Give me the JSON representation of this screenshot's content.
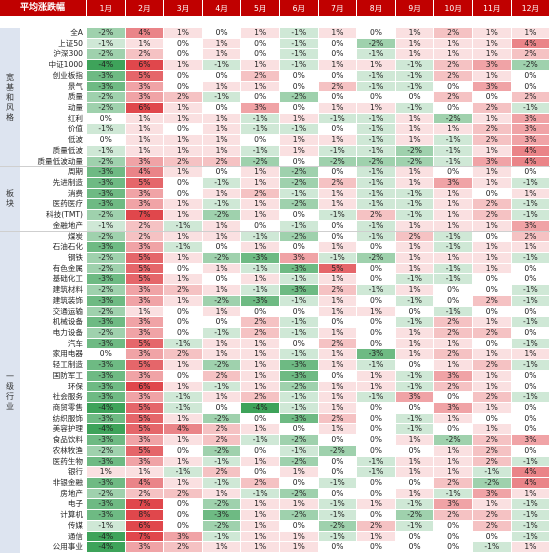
{
  "chart_data": {
    "type": "heatmap",
    "title": "平均涨跌幅",
    "columns": [
      "1月",
      "2月",
      "3月",
      "4月",
      "5月",
      "6月",
      "7月",
      "8月",
      "9月",
      "10月",
      "11月",
      "12月"
    ],
    "colors": {
      "header_bg": "#c00000",
      "positive": "#e0474c",
      "negative": "#3ea35a",
      "group_bg": "#dde4f0"
    },
    "groups": [
      {
        "label": "宽基和风格",
        "rows": [
          {
            "name": "全A",
            "values": [
              -2,
              4,
              1,
              0,
              1,
              -1,
              1,
              0,
              1,
              2,
              1,
              1
            ]
          },
          {
            "name": "上证50",
            "values": [
              -1,
              1,
              0,
              1,
              0,
              -1,
              0,
              -2,
              1,
              1,
              1,
              4
            ]
          },
          {
            "name": "沪深300",
            "values": [
              -2,
              2,
              0,
              1,
              0,
              -1,
              0,
              -1,
              1,
              1,
              1,
              2
            ]
          },
          {
            "name": "中证1000",
            "values": [
              -4,
              6,
              1,
              -1,
              1,
              -1,
              1,
              1,
              -1,
              2,
              3,
              -2
            ]
          },
          {
            "name": "创业板指",
            "values": [
              -3,
              5,
              0,
              0,
              2,
              0,
              0,
              -1,
              -1,
              2,
              1,
              0
            ]
          },
          {
            "name": "景气",
            "values": [
              -3,
              3,
              0,
              1,
              1,
              0,
              2,
              -1,
              -1,
              0,
              3,
              0
            ]
          },
          {
            "name": "质量",
            "values": [
              -2,
              3,
              2,
              -1,
              0,
              -2,
              0,
              0,
              0,
              2,
              0,
              2
            ]
          },
          {
            "name": "动量",
            "values": [
              -2,
              6,
              1,
              0,
              3,
              0,
              1,
              1,
              -1,
              0,
              2,
              -1
            ]
          },
          {
            "name": "红利",
            "values": [
              0,
              1,
              1,
              1,
              -1,
              1,
              -1,
              -1,
              1,
              -2,
              1,
              3
            ]
          },
          {
            "name": "价值",
            "values": [
              -1,
              1,
              0,
              1,
              -1,
              -1,
              0,
              -1,
              1,
              1,
              2,
              3
            ]
          },
          {
            "name": "低波",
            "values": [
              0,
              1,
              1,
              1,
              0,
              1,
              1,
              -1,
              1,
              -1,
              2,
              3
            ]
          },
          {
            "name": "质量低波",
            "values": [
              -1,
              1,
              1,
              1,
              -1,
              1,
              -1,
              -1,
              -2,
              -1,
              1,
              4
            ]
          },
          {
            "name": "质量低波动量",
            "values": [
              -2,
              3,
              2,
              2,
              -2,
              0,
              -2,
              -2,
              -2,
              -1,
              3,
              4
            ]
          }
        ]
      },
      {
        "label": "板块",
        "rows": [
          {
            "name": "周期",
            "values": [
              -3,
              4,
              1,
              0,
              1,
              -2,
              0,
              -1,
              1,
              0,
              1,
              0
            ]
          },
          {
            "name": "先进制造",
            "values": [
              -3,
              5,
              0,
              -1,
              1,
              -2,
              2,
              -1,
              1,
              3,
              1,
              -1
            ]
          },
          {
            "name": "消费",
            "values": [
              -3,
              3,
              0,
              1,
              2,
              -1,
              1,
              -1,
              -1,
              1,
              0,
              1
            ]
          },
          {
            "name": "医药医疗",
            "values": [
              -3,
              3,
              1,
              -1,
              1,
              -2,
              1,
              -1,
              -1,
              1,
              2,
              -1
            ]
          },
          {
            "name": "科技(TMT)",
            "values": [
              -2,
              7,
              1,
              -2,
              1,
              0,
              -1,
              2,
              -1,
              1,
              2,
              -1
            ]
          },
          {
            "name": "金融地产",
            "values": [
              -1,
              2,
              -1,
              1,
              0,
              -1,
              0,
              -1,
              1,
              1,
              1,
              3
            ]
          }
        ]
      },
      {
        "label": "一级行业",
        "rows": [
          {
            "name": "煤炭",
            "values": [
              -2,
              2,
              1,
              1,
              -1,
              -2,
              0,
              -1,
              2,
              -1,
              0,
              2
            ]
          },
          {
            "name": "石油石化",
            "values": [
              -3,
              3,
              -1,
              0,
              1,
              0,
              1,
              0,
              1,
              -1,
              1,
              1
            ]
          },
          {
            "name": "钢铁",
            "values": [
              -2,
              5,
              1,
              -2,
              -3,
              3,
              -1,
              -2,
              1,
              1,
              1,
              -1
            ]
          },
          {
            "name": "有色金属",
            "values": [
              -2,
              5,
              0,
              1,
              -1,
              -3,
              5,
              0,
              1,
              -1,
              1,
              0
            ]
          },
          {
            "name": "基础化工",
            "values": [
              -3,
              5,
              1,
              0,
              1,
              -1,
              1,
              0,
              -1,
              -1,
              0,
              0
            ]
          },
          {
            "name": "建筑材料",
            "values": [
              -2,
              3,
              2,
              1,
              -1,
              -3,
              2,
              -1,
              1,
              0,
              0,
              -1
            ]
          },
          {
            "name": "建筑装饰",
            "values": [
              -3,
              3,
              1,
              -2,
              -3,
              -1,
              1,
              0,
              -1,
              0,
              2,
              -1
            ]
          },
          {
            "name": "交通运输",
            "values": [
              -2,
              1,
              0,
              1,
              0,
              0,
              1,
              1,
              0,
              -1,
              0,
              0
            ]
          },
          {
            "name": "机械设备",
            "values": [
              -3,
              3,
              0,
              0,
              2,
              -1,
              0,
              0,
              -1,
              2,
              1,
              -1
            ]
          },
          {
            "name": "电力设备",
            "values": [
              -2,
              3,
              0,
              -1,
              2,
              -1,
              1,
              0,
              1,
              2,
              2,
              0
            ]
          },
          {
            "name": "汽车",
            "values": [
              -3,
              5,
              -1,
              1,
              1,
              0,
              2,
              0,
              1,
              1,
              0,
              -1
            ]
          },
          {
            "name": "家用电器",
            "values": [
              0,
              3,
              2,
              1,
              1,
              -1,
              1,
              -3,
              1,
              2,
              1,
              1
            ]
          },
          {
            "name": "轻工制造",
            "values": [
              -3,
              5,
              1,
              -2,
              1,
              -3,
              1,
              -1,
              0,
              1,
              2,
              -1
            ]
          },
          {
            "name": "国防军工",
            "values": [
              -3,
              3,
              0,
              2,
              1,
              -3,
              0,
              1,
              -1,
              3,
              1,
              0
            ]
          },
          {
            "name": "环保",
            "values": [
              -3,
              6,
              1,
              -1,
              1,
              -2,
              1,
              1,
              -1,
              2,
              1,
              0
            ]
          },
          {
            "name": "社会服务",
            "values": [
              -3,
              3,
              -1,
              1,
              2,
              -1,
              1,
              -1,
              3,
              0,
              2,
              -1
            ]
          },
          {
            "name": "商贸零售",
            "values": [
              -4,
              5,
              -1,
              0,
              -4,
              -1,
              1,
              0,
              0,
              3,
              1,
              0
            ]
          },
          {
            "name": "纺织服饰",
            "values": [
              -3,
              5,
              1,
              -2,
              0,
              -3,
              2,
              0,
              -1,
              1,
              0,
              0
            ]
          },
          {
            "name": "美容护理",
            "values": [
              -4,
              5,
              4,
              2,
              1,
              0,
              1,
              0,
              -1,
              0,
              1,
              0
            ]
          },
          {
            "name": "食品饮料",
            "values": [
              -3,
              3,
              1,
              2,
              -1,
              -2,
              0,
              0,
              1,
              -2,
              2,
              3
            ]
          },
          {
            "name": "农林牧渔",
            "values": [
              -2,
              5,
              0,
              -2,
              0,
              -1,
              -2,
              0,
              0,
              1,
              2,
              0
            ]
          },
          {
            "name": "医药生物",
            "values": [
              -3,
              3,
              1,
              -1,
              1,
              -2,
              0,
              -1,
              1,
              1,
              2,
              -1
            ]
          },
          {
            "name": "银行",
            "values": [
              1,
              1,
              -1,
              2,
              0,
              1,
              0,
              -1,
              1,
              1,
              -1,
              4
            ]
          },
          {
            "name": "非银金融",
            "values": [
              -3,
              4,
              1,
              -1,
              2,
              0,
              -1,
              0,
              0,
              2,
              -2,
              4
            ]
          },
          {
            "name": "房地产",
            "values": [
              -2,
              2,
              2,
              1,
              -1,
              -2,
              0,
              0,
              1,
              -1,
              3,
              1
            ]
          },
          {
            "name": "电子",
            "values": [
              -3,
              7,
              0,
              -2,
              1,
              1,
              -1,
              1,
              -1,
              3,
              1,
              -1
            ]
          },
          {
            "name": "计算机",
            "values": [
              -3,
              8,
              0,
              -3,
              1,
              -2,
              -1,
              0,
              -2,
              2,
              2,
              -1
            ]
          },
          {
            "name": "传媒",
            "values": [
              -1,
              6,
              0,
              -2,
              1,
              0,
              -2,
              2,
              -1,
              0,
              2,
              -1
            ]
          },
          {
            "name": "通信",
            "values": [
              -4,
              7,
              3,
              -1,
              1,
              1,
              -1,
              1,
              0,
              0,
              0,
              -1
            ]
          },
          {
            "name": "公用事业",
            "values": [
              -4,
              3,
              2,
              1,
              1,
              1,
              0,
              0,
              0,
              0,
              -1,
              1
            ]
          }
        ]
      }
    ]
  }
}
